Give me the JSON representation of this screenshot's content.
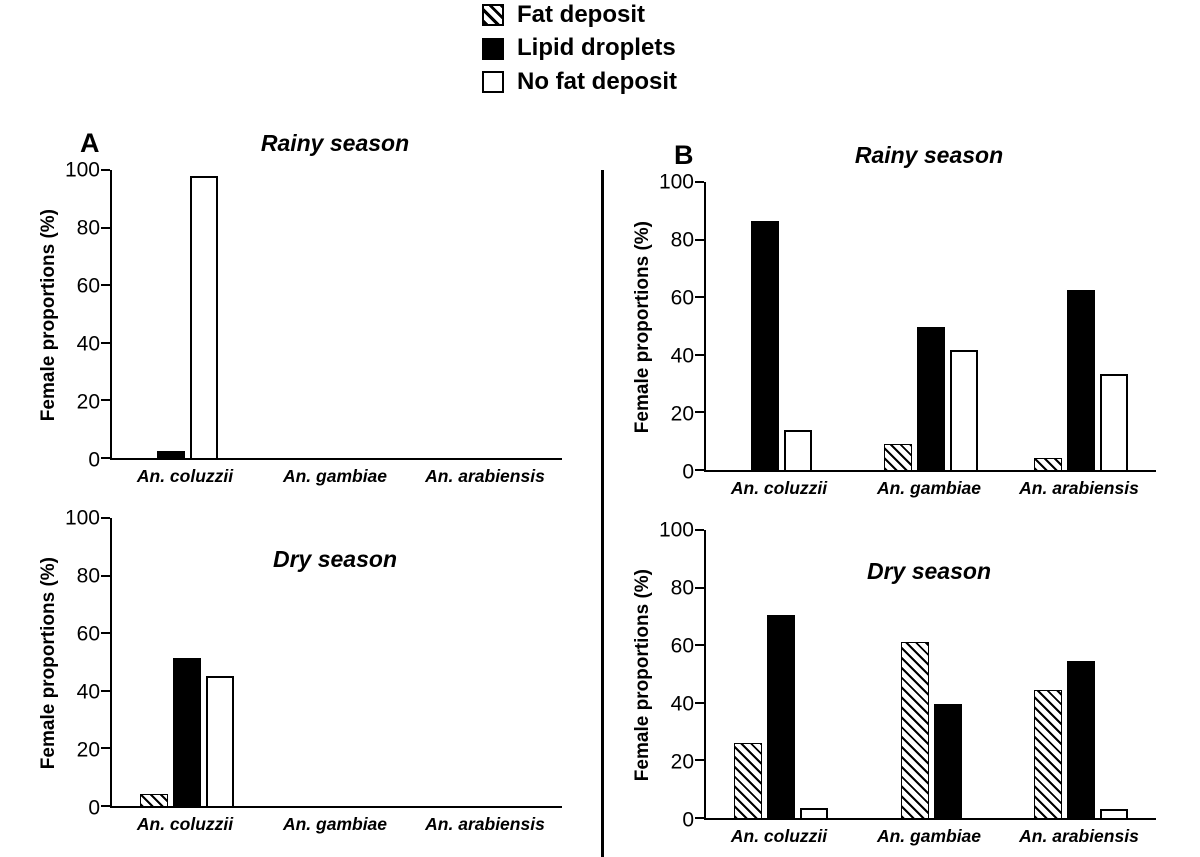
{
  "legend": {
    "items": [
      {
        "label": "Fat deposit",
        "style": "hatched"
      },
      {
        "label": "Lipid droplets",
        "style": "black"
      },
      {
        "label": "No fat deposit",
        "style": "white"
      }
    ]
  },
  "panels": [
    {
      "letter": "A"
    },
    {
      "letter": "B"
    }
  ],
  "chart_data": [
    {
      "type": "bar",
      "panel": "A",
      "title": "Rainy season",
      "ylabel": "Female proportions (%)",
      "ylim": [
        0,
        100
      ],
      "ytick_step": 20,
      "categories": [
        "An. coluzzii",
        "An. gambiae",
        "An. arabiensis"
      ],
      "series": [
        {
          "name": "Fat deposit",
          "style": "hatched",
          "values": [
            0,
            0,
            0
          ]
        },
        {
          "name": "Lipid droplets",
          "style": "black",
          "values": [
            2.5,
            0,
            0
          ]
        },
        {
          "name": "No fat deposit",
          "style": "white",
          "values": [
            98,
            0,
            0
          ]
        }
      ]
    },
    {
      "type": "bar",
      "panel": "A",
      "title": "Dry season",
      "ylabel": "Female proportions (%)",
      "ylim": [
        0,
        100
      ],
      "ytick_step": 20,
      "categories": [
        "An. coluzzii",
        "An. gambiae",
        "An. arabiensis"
      ],
      "series": [
        {
          "name": "Fat deposit",
          "style": "hatched",
          "values": [
            4,
            0,
            0
          ]
        },
        {
          "name": "Lipid droplets",
          "style": "black",
          "values": [
            51.5,
            0,
            0
          ]
        },
        {
          "name": "No fat deposit",
          "style": "white",
          "values": [
            45,
            0,
            0
          ]
        }
      ]
    },
    {
      "type": "bar",
      "panel": "B",
      "title": "Rainy season",
      "ylabel": "Female proportions (%)",
      "ylim": [
        0,
        100
      ],
      "ytick_step": 20,
      "categories": [
        "An. coluzzii",
        "An. gambiae",
        "An. arabiensis"
      ],
      "series": [
        {
          "name": "Fat deposit",
          "style": "hatched",
          "values": [
            0,
            9,
            4
          ]
        },
        {
          "name": "Lipid droplets",
          "style": "black",
          "values": [
            86.5,
            49.5,
            62.5
          ]
        },
        {
          "name": "No fat deposit",
          "style": "white",
          "values": [
            14,
            41.5,
            33.5
          ]
        }
      ]
    },
    {
      "type": "bar",
      "panel": "B",
      "title": "Dry season",
      "ylabel": "Female proportions (%)",
      "ylim": [
        0,
        100
      ],
      "ytick_step": 20,
      "categories": [
        "An. coluzzii",
        "An. gambiae",
        "An. arabiensis"
      ],
      "series": [
        {
          "name": "Fat deposit",
          "style": "hatched",
          "values": [
            26,
            61,
            44.5
          ]
        },
        {
          "name": "Lipid droplets",
          "style": "black",
          "values": [
            70.5,
            39.5,
            54.5
          ]
        },
        {
          "name": "No fat deposit",
          "style": "white",
          "values": [
            3.5,
            0,
            3
          ]
        }
      ]
    }
  ]
}
